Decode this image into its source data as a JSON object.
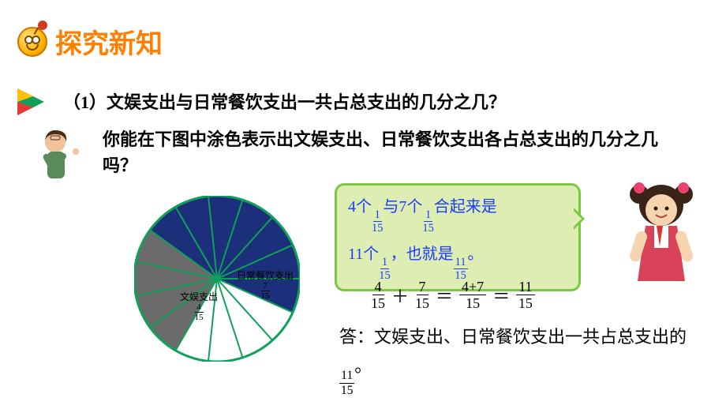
{
  "colors": {
    "title": "#ff7f00",
    "text": "#000000",
    "bubble_bg": "#deeeb3",
    "bubble_border": "#7ac943",
    "bubble_text": "#1a3cff",
    "arrow_green": "#0fa05a",
    "arrow_yellow": "#ffc107",
    "arrow_red": "#e53935",
    "pie_border": "#0fa05a",
    "pie_blue": "#1b2f7a",
    "pie_gray": "#6b6b6b",
    "pie_white": "#ffffff",
    "background": "#ffffff"
  },
  "typography": {
    "title_fontsize": 34,
    "body_fontsize": 22,
    "bubble_fontsize": 20,
    "pie_label_fontsize": 12,
    "font_family": "KaiTi"
  },
  "header": {
    "title": "探究新知"
  },
  "q1": "（1）文娱支出与日常餐饮支出一共占总支出的几分之几？",
  "q2": "你能在下图中涂色表示出文娱支出、日常餐饮支出各占总支出的几分之几吗？",
  "pie": {
    "type": "pie",
    "total_slices": 15,
    "radius": 105,
    "segments": [
      {
        "label": "文娱支出",
        "value": 4,
        "color": "#6b6b6b",
        "frac_num": "4",
        "frac_den": "15"
      },
      {
        "label": "日常餐饮支出",
        "value": 7,
        "color": "#1b2f7a",
        "frac_num": "7",
        "frac_den": "15"
      },
      {
        "label": "",
        "value": 4,
        "color": "#ffffff",
        "frac_num": "",
        "frac_den": ""
      }
    ],
    "border_color": "#0fa05a",
    "sep_color": "#0fa05a",
    "sep_width": 2
  },
  "bubble": {
    "p1a": "4个",
    "p1b": "与7个",
    "p1c": "合起来是",
    "p2a": "11个",
    "p2b": "，也就是",
    "p2c": "。",
    "f1n": "1",
    "f1d": "15",
    "f2n": "1",
    "f2d": "15",
    "f3n": "1",
    "f3d": "15",
    "f4n": "11",
    "f4d": "15"
  },
  "equation": {
    "t1n": "4",
    "t1d": "15",
    "op1": "＋",
    "t2n": "7",
    "t2d": "15",
    "eq1": "＝",
    "t3n": "4+7",
    "t3d": "15",
    "eq2": "＝",
    "t4n": "11",
    "t4d": "15"
  },
  "answer": {
    "prefix": "答：文娱支出、日常餐饮支出一共占总支出的",
    "fn": "11",
    "fd": "15",
    "suffix": "。"
  }
}
